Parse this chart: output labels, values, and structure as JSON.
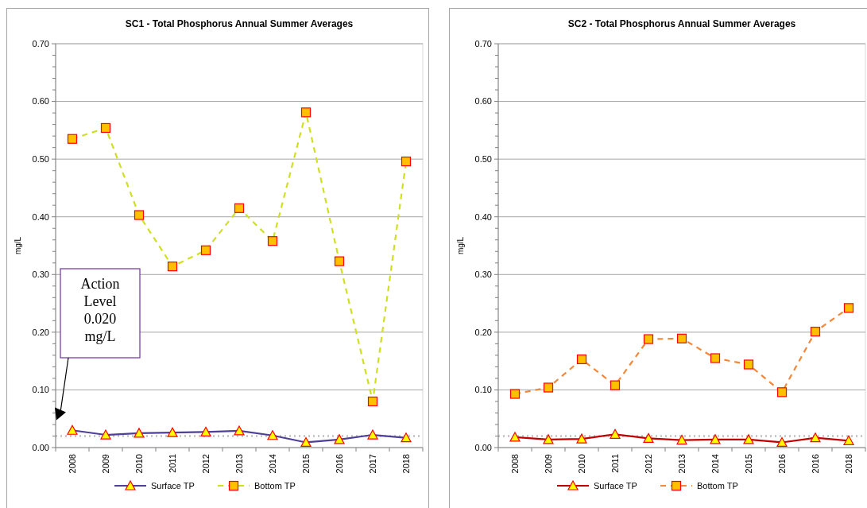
{
  "chart_data": [
    {
      "type": "line",
      "title": "SC1 - Total Phosphorus Annual Summer Averages",
      "ylabel": "mg/L",
      "categories": [
        "2008",
        "2009",
        "2010",
        "2011",
        "2012",
        "2013",
        "2014",
        "2015",
        "2016",
        "2017",
        "2018"
      ],
      "series": [
        {
          "name": "Surface TP",
          "color": "#4f3f99",
          "marker": "triangle",
          "line_style": "solid",
          "values": [
            0.03,
            0.022,
            0.025,
            0.026,
            0.027,
            0.029,
            0.021,
            0.009,
            0.014,
            0.022,
            0.017
          ]
        },
        {
          "name": "Bottom TP",
          "color": "#cfe021",
          "marker": "square",
          "line_style": "dashed",
          "values": [
            0.535,
            0.554,
            0.403,
            0.314,
            0.342,
            0.415,
            0.358,
            0.581,
            0.323,
            0.08,
            0.496
          ]
        }
      ],
      "ylim": [
        0,
        0.7
      ],
      "yticks": [
        {
          "value": 0,
          "label": "0.00"
        },
        {
          "value": 0.02,
          "label": null
        },
        {
          "value": 0.04,
          "label": null
        },
        {
          "value": 0.06,
          "label": null
        },
        {
          "value": 0.08,
          "label": null
        },
        {
          "value": 0.1,
          "label": "0.10"
        },
        {
          "value": 0.12,
          "label": null
        },
        {
          "value": 0.14,
          "label": null
        },
        {
          "value": 0.16,
          "label": null
        },
        {
          "value": 0.18,
          "label": null
        },
        {
          "value": 0.2,
          "label": "0.20"
        },
        {
          "value": 0.22,
          "label": null
        },
        {
          "value": 0.24,
          "label": null
        },
        {
          "value": 0.26,
          "label": null
        },
        {
          "value": 0.28,
          "label": null
        },
        {
          "value": 0.3,
          "label": "0.30"
        },
        {
          "value": 0.32,
          "label": null
        },
        {
          "value": 0.34,
          "label": null
        },
        {
          "value": 0.36,
          "label": null
        },
        {
          "value": 0.38,
          "label": null
        },
        {
          "value": 0.4,
          "label": "0.40"
        },
        {
          "value": 0.42,
          "label": null
        },
        {
          "value": 0.44,
          "label": null
        },
        {
          "value": 0.46,
          "label": null
        },
        {
          "value": 0.48,
          "label": null
        },
        {
          "value": 0.5,
          "label": "0.50"
        },
        {
          "value": 0.52,
          "label": null
        },
        {
          "value": 0.54,
          "label": null
        },
        {
          "value": 0.56,
          "label": null
        },
        {
          "value": 0.58,
          "label": null
        },
        {
          "value": 0.6,
          "label": "0.60"
        },
        {
          "value": 0.62,
          "label": null
        },
        {
          "value": 0.64,
          "label": null
        },
        {
          "value": 0.66,
          "label": null
        },
        {
          "value": 0.68,
          "label": null
        },
        {
          "value": 0.7,
          "label": "0.70"
        }
      ],
      "ref_lines": [
        {
          "axis": "y",
          "value": 0.02,
          "color": "#bfbfbf",
          "line_style": "dotted"
        }
      ],
      "annotations": [
        "Action Level 0.020 mg/L"
      ],
      "grid": "y",
      "legend": "bottom"
    },
    {
      "type": "line",
      "title": "SC2 - Total Phosphorus Annual Summer Averages",
      "ylabel": "mg/L",
      "categories": [
        "2008",
        "2009",
        "2010",
        "2011",
        "2012",
        "2013",
        "2014",
        "2015",
        "2016",
        "2016",
        "2018"
      ],
      "series": [
        {
          "name": "Surface TP",
          "color": "#c00000",
          "marker": "triangle",
          "line_style": "solid",
          "values": [
            0.018,
            0.014,
            0.015,
            0.023,
            0.016,
            0.013,
            0.014,
            0.014,
            0.009,
            0.017,
            0.012
          ]
        },
        {
          "name": "Bottom TP",
          "color": "#f4883a",
          "marker": "square",
          "line_style": "dashed",
          "values": [
            0.093,
            0.104,
            0.153,
            0.108,
            0.188,
            0.189,
            0.155,
            0.144,
            0.096,
            0.201,
            0.242
          ]
        }
      ],
      "ylim": [
        0,
        0.7
      ],
      "yticks": [
        {
          "value": 0,
          "label": "0.00"
        },
        {
          "value": 0.02,
          "label": null
        },
        {
          "value": 0.04,
          "label": null
        },
        {
          "value": 0.06,
          "label": null
        },
        {
          "value": 0.08,
          "label": null
        },
        {
          "value": 0.1,
          "label": "0.10"
        },
        {
          "value": 0.12,
          "label": null
        },
        {
          "value": 0.14,
          "label": null
        },
        {
          "value": 0.16,
          "label": null
        },
        {
          "value": 0.18,
          "label": null
        },
        {
          "value": 0.2,
          "label": "0.20"
        },
        {
          "value": 0.22,
          "label": null
        },
        {
          "value": 0.24,
          "label": null
        },
        {
          "value": 0.26,
          "label": null
        },
        {
          "value": 0.28,
          "label": null
        },
        {
          "value": 0.3,
          "label": "0.30"
        },
        {
          "value": 0.32,
          "label": null
        },
        {
          "value": 0.34,
          "label": null
        },
        {
          "value": 0.36,
          "label": null
        },
        {
          "value": 0.38,
          "label": null
        },
        {
          "value": 0.4,
          "label": "0.40"
        },
        {
          "value": 0.42,
          "label": null
        },
        {
          "value": 0.44,
          "label": null
        },
        {
          "value": 0.46,
          "label": null
        },
        {
          "value": 0.48,
          "label": null
        },
        {
          "value": 0.5,
          "label": "0.50"
        },
        {
          "value": 0.52,
          "label": null
        },
        {
          "value": 0.54,
          "label": null
        },
        {
          "value": 0.56,
          "label": null
        },
        {
          "value": 0.58,
          "label": null
        },
        {
          "value": 0.6,
          "label": "0.60"
        },
        {
          "value": 0.62,
          "label": null
        },
        {
          "value": 0.64,
          "label": null
        },
        {
          "value": 0.66,
          "label": null
        },
        {
          "value": 0.68,
          "label": null
        },
        {
          "value": 0.7,
          "label": "0.70"
        }
      ],
      "ref_lines": [
        {
          "axis": "y",
          "value": 0.02,
          "color": "#bfbfbf",
          "line_style": "dotted"
        }
      ],
      "grid": "y",
      "legend": "bottom"
    }
  ]
}
